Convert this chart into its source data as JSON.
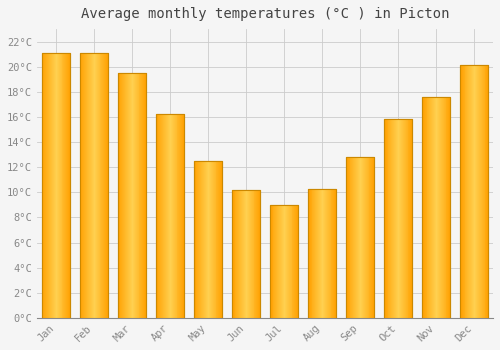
{
  "title": "Average monthly temperatures (°C ) in Picton",
  "months": [
    "Jan",
    "Feb",
    "Mar",
    "Apr",
    "May",
    "Jun",
    "Jul",
    "Aug",
    "Sep",
    "Oct",
    "Nov",
    "Dec"
  ],
  "values": [
    21.1,
    21.1,
    19.5,
    16.2,
    12.5,
    10.2,
    9.0,
    10.3,
    12.8,
    15.8,
    17.6,
    20.1
  ],
  "bar_color_light": "#FFD050",
  "bar_color_dark": "#FFA000",
  "bar_edge_color": "#CC8800",
  "ylim": [
    0,
    23
  ],
  "yticks": [
    0,
    2,
    4,
    6,
    8,
    10,
    12,
    14,
    16,
    18,
    20,
    22
  ],
  "ytick_labels": [
    "0°C",
    "2°C",
    "4°C",
    "6°C",
    "8°C",
    "10°C",
    "12°C",
    "14°C",
    "16°C",
    "18°C",
    "20°C",
    "22°C"
  ],
  "background_color": "#f5f5f5",
  "grid_color": "#cccccc",
  "title_fontsize": 10,
  "tick_fontsize": 7.5,
  "tick_color": "#888888",
  "bar_width": 0.75
}
